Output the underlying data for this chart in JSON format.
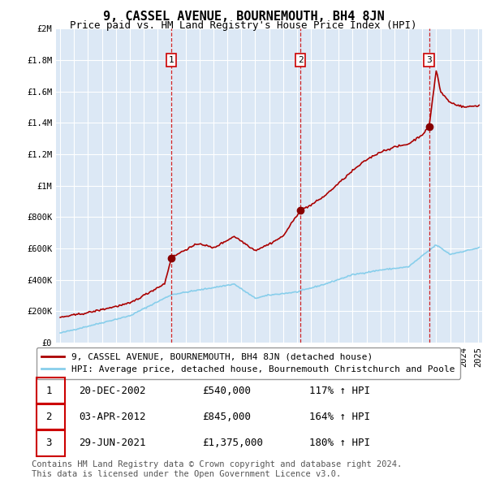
{
  "title": "9, CASSEL AVENUE, BOURNEMOUTH, BH4 8JN",
  "subtitle": "Price paid vs. HM Land Registry's House Price Index (HPI)",
  "ylim": [
    0,
    2000000
  ],
  "yticks": [
    0,
    200000,
    400000,
    600000,
    800000,
    1000000,
    1200000,
    1400000,
    1600000,
    1800000,
    2000000
  ],
  "ytick_labels": [
    "£0",
    "£200K",
    "£400K",
    "£600K",
    "£800K",
    "£1M",
    "£1.2M",
    "£1.4M",
    "£1.6M",
    "£1.8M",
    "£2M"
  ],
  "x_start_year": 1995,
  "x_end_year": 2025,
  "sales": [
    {
      "year": 2002.97,
      "price": 540000,
      "label": "1"
    },
    {
      "year": 2012.25,
      "price": 845000,
      "label": "2"
    },
    {
      "year": 2021.49,
      "price": 1375000,
      "label": "3"
    }
  ],
  "sale_line_color": "#aa0000",
  "hpi_line_color": "#87CEEB",
  "legend_sale_label": "9, CASSEL AVENUE, BOURNEMOUTH, BH4 8JN (detached house)",
  "legend_hpi_label": "HPI: Average price, detached house, Bournemouth Christchurch and Poole",
  "table_rows": [
    {
      "num": "1",
      "date": "20-DEC-2002",
      "price": "£540,000",
      "change": "117% ↑ HPI"
    },
    {
      "num": "2",
      "date": "03-APR-2012",
      "price": "£845,000",
      "change": "164% ↑ HPI"
    },
    {
      "num": "3",
      "date": "29-JUN-2021",
      "price": "£1,375,000",
      "change": "180% ↑ HPI"
    }
  ],
  "footer": "Contains HM Land Registry data © Crown copyright and database right 2024.\nThis data is licensed under the Open Government Licence v3.0.",
  "bg_color": "#ffffff",
  "plot_bg_color": "#dce8f5",
  "grid_color": "#ffffff",
  "sale_vline_color": "#cc0000",
  "title_fontsize": 11,
  "subtitle_fontsize": 9,
  "tick_fontsize": 7.5,
  "legend_fontsize": 8,
  "table_fontsize": 9,
  "footer_fontsize": 7.5
}
